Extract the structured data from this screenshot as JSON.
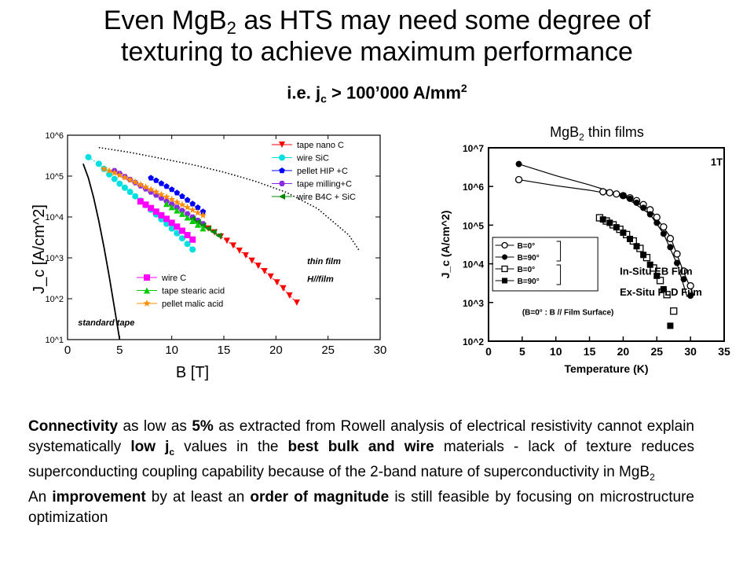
{
  "header": {
    "title_line1_pre": "Even MgB",
    "title_line1_sub": "2",
    "title_line1_post": " as HTS may need some degree of",
    "title_line2": "texturing to achieve maximum performance",
    "subtitle_pre": "i.e. j",
    "subtitle_sub": "c",
    "subtitle_post": " > 100’000 A/mm",
    "subtitle_sup": "2"
  },
  "right_caption": {
    "pre": "MgB",
    "sub": "2",
    "post": " thin films"
  },
  "text": {
    "p1": [
      {
        "t": "Connectivity",
        "b": true
      },
      {
        "t": " as low as "
      },
      {
        "t": "5%",
        "b": true
      },
      {
        "t": " as extracted from Rowell analysis of electrical resistivity cannot explain systematically "
      },
      {
        "t": "low j",
        "b": true
      },
      {
        "t": "c",
        "b": true,
        "sub": true
      },
      {
        "t": " values in the "
      },
      {
        "t": "best bulk and wire",
        "b": true
      },
      {
        "t": " materials - lack of texture reduces superconducting coupling capability because of the 2-band nature of superconductivity in MgB"
      },
      {
        "t": "2",
        "sub": true
      }
    ],
    "p2": [
      {
        "t": "An "
      },
      {
        "t": "improvement",
        "b": true
      },
      {
        "t": " by at least an "
      },
      {
        "t": "order of magnitude",
        "b": true
      },
      {
        "t": " is still feasible by focusing on microstructure optimization"
      }
    ]
  },
  "chart_data": [
    {
      "type": "scatter",
      "title": "",
      "xlabel": "B [T]",
      "ylabel": "J_c [A/cm^2]",
      "xlim": [
        0,
        30
      ],
      "ylim": [
        10,
        1000000
      ],
      "yscale": "log",
      "xticks": [
        "0",
        "5",
        "10",
        "15",
        "20",
        "25",
        "30"
      ],
      "yticks": [
        "10^1",
        "10^2",
        "10^3",
        "10^4",
        "10^5",
        "10^6"
      ],
      "annotations": [
        {
          "text": "thin film",
          "x": 23.0,
          "y": 700
        },
        {
          "text": "H//film",
          "x": 23.0,
          "y": 260
        },
        {
          "text": "standard tape",
          "x": 1.0,
          "y": 22
        }
      ],
      "legend_top": "top-right",
      "legend_bottom": "center",
      "series": [
        {
          "name": "tape nano C",
          "marker": "tri-down",
          "color": "#ff0000",
          "legend": "top",
          "x": [
            13.5,
            14.1,
            14.7,
            15.3,
            15.9,
            16.5,
            17.1,
            17.7,
            18.3,
            18.9,
            19.5,
            20.1,
            20.7,
            21.3,
            22.0
          ],
          "y": [
            5200,
            4200,
            3300,
            2600,
            2000,
            1500,
            1150,
            850,
            640,
            470,
            350,
            250,
            180,
            120,
            80
          ]
        },
        {
          "name": "wire SiC",
          "marker": "circle",
          "color": "#00e0e0",
          "legend": "top",
          "x": [
            2.0,
            3.0,
            3.5,
            4.0,
            4.5,
            5.0,
            5.5,
            6.0,
            6.5,
            7.0,
            7.5,
            8.0,
            8.5,
            9.0,
            9.5,
            10.0,
            10.5,
            11.0,
            11.5,
            12.0
          ],
          "y": [
            290000,
            200000,
            150000,
            110000,
            85000,
            65000,
            52000,
            41000,
            32000,
            25000,
            19500,
            15000,
            11500,
            8800,
            6800,
            5200,
            4000,
            3000,
            2200,
            1600
          ]
        },
        {
          "name": "pellet HIP +C",
          "marker": "pentagon",
          "color": "#0000ff",
          "legend": "top",
          "x": [
            8.0,
            8.5,
            9.0,
            9.5,
            10.0,
            10.5,
            11.0,
            11.5,
            12.0,
            12.5,
            13.0
          ],
          "y": [
            90000,
            78000,
            66000,
            56000,
            47000,
            39000,
            32000,
            26000,
            21000,
            17000,
            13500
          ]
        },
        {
          "name": "tape milling+C",
          "marker": "hexagon",
          "color": "#8a2be2",
          "legend": "top",
          "x": [
            4.5,
            5.0,
            5.5,
            6.0,
            6.5,
            7.0,
            7.5,
            8.0,
            8.5,
            9.0,
            9.5,
            10.0,
            10.5,
            11.0,
            11.5,
            12.0,
            12.5,
            13.0
          ],
          "y": [
            135000,
            115000,
            97000,
            82000,
            69000,
            58000,
            49000,
            41000,
            34500,
            29000,
            24300,
            20400,
            17100,
            14300,
            11900,
            9900,
            8200,
            6800
          ]
        },
        {
          "name": "wire B4C + SiC",
          "marker": "tri-left",
          "color": "#008800",
          "legend": "top",
          "x": [
            12.0,
            12.5,
            13.0,
            13.5,
            14.0,
            14.5
          ],
          "y": [
            9000,
            7500,
            6200,
            5200,
            4300,
            3500
          ]
        },
        {
          "name": "wire C",
          "marker": "square",
          "color": "#ff00ff",
          "legend": "bottom",
          "x": [
            7.0,
            7.5,
            8.0,
            8.5,
            9.0,
            9.5,
            10.0,
            10.5,
            11.0,
            11.5,
            12.0
          ],
          "y": [
            24000,
            20000,
            16500,
            13500,
            11000,
            9000,
            7200,
            5800,
            4600,
            3600,
            2800
          ]
        },
        {
          "name": "tape stearic acid",
          "marker": "tri-up",
          "color": "#00cc00",
          "legend": "bottom",
          "x": [
            9.5,
            10.0,
            10.5,
            11.0,
            11.5,
            12.0,
            12.5,
            13.0
          ],
          "y": [
            21000,
            17500,
            14500,
            12000,
            9800,
            8000,
            6500,
            5300
          ]
        },
        {
          "name": "pellet malic acid",
          "marker": "star",
          "color": "#ff8c00",
          "legend": "bottom",
          "x": [
            3.5,
            4.0,
            4.5,
            5.0,
            5.5,
            6.0,
            6.5,
            7.0,
            7.5,
            8.0,
            8.5,
            9.0,
            9.5,
            10.0,
            10.5,
            11.0,
            11.5,
            12.0,
            12.5,
            13.0
          ],
          "y": [
            150000,
            135000,
            120000,
            105000,
            92000,
            81000,
            71000,
            62000,
            54000,
            47000,
            41000,
            35500,
            31000,
            27000,
            23000,
            20000,
            17200,
            14800,
            12700,
            10900
          ]
        },
        {
          "name": "thin film",
          "marker": "dotted",
          "color": "#000000",
          "legend": "none",
          "x": [
            3.0,
            6,
            9,
            12,
            15,
            18,
            21,
            24,
            27,
            28
          ],
          "y": [
            500000,
            380000,
            270000,
            190000,
            125000,
            75000,
            40000,
            16000,
            3600,
            1500
          ]
        },
        {
          "name": "standard tape",
          "marker": "line",
          "color": "#000000",
          "legend": "none",
          "x": [
            1.5,
            2.0,
            2.5,
            3.0,
            3.5,
            4.0,
            4.5,
            5.0
          ],
          "y": [
            200000,
            90000,
            30000,
            8000,
            1800,
            350,
            60,
            10
          ]
        }
      ]
    },
    {
      "type": "scatter",
      "title": "",
      "xlabel": "Temperature (K)",
      "ylabel": "J_c (A/cm^2)",
      "xlim": [
        0,
        35
      ],
      "ylim": [
        100,
        10000000
      ],
      "yscale": "log",
      "xticks": [
        "0",
        "5",
        "10",
        "15",
        "20",
        "25",
        "30",
        "35"
      ],
      "yticks": [
        "10^2",
        "10^3",
        "10^4",
        "10^5",
        "10^6",
        "10^7"
      ],
      "annotations": [
        {
          "text": "1T",
          "x": 33.0,
          "y": 3500000
        },
        {
          "text": "In-Situ EB Film",
          "x": 19.5,
          "y": 5200
        },
        {
          "text": "Ex-Situ PLD Film",
          "x": 19.5,
          "y": 1500
        },
        {
          "text": "(B=0° : B // Film Surface)",
          "x": 5.0,
          "y": 480
        }
      ],
      "legend_placement": "bottom-left",
      "series": [
        {
          "name": "B=0°",
          "group": "In-Situ EB Film",
          "marker": "open-circle",
          "color": "#000000",
          "x": [
            4.5,
            17,
            18,
            19,
            20,
            21,
            22,
            23,
            24,
            25,
            26,
            27,
            28,
            29,
            30
          ],
          "y": [
            1500000,
            730000,
            690000,
            640000,
            580000,
            510000,
            430000,
            340000,
            250000,
            160000,
            90000,
            45000,
            18000,
            6500,
            2700
          ]
        },
        {
          "name": "B=90°",
          "group": "In-Situ EB Film",
          "marker": "filled-circle",
          "color": "#000000",
          "x": [
            4.5,
            20,
            21,
            22,
            23,
            24,
            25,
            26,
            27,
            28,
            29,
            30
          ],
          "y": [
            3800000,
            580000,
            480000,
            380000,
            280000,
            190000,
            115000,
            60000,
            27000,
            10500,
            4000,
            1500
          ]
        },
        {
          "name": "B=0°",
          "group": "Ex-Situ PLD Film",
          "marker": "open-square",
          "color": "#000000",
          "x": [
            16.5,
            17.5,
            18.5,
            19.5,
            20.5,
            21.5,
            22.5,
            23.5,
            24.5,
            25.5,
            26.5,
            27.5
          ],
          "y": [
            155000,
            128000,
            102000,
            78000,
            57000,
            39000,
            25000,
            14500,
            7800,
            3700,
            1600,
            600
          ]
        },
        {
          "name": "B=90°",
          "group": "Ex-Situ PLD Film",
          "marker": "filled-square",
          "color": "#000000",
          "x": [
            17,
            18,
            19,
            20,
            21,
            22,
            23,
            24,
            25,
            26,
            27
          ],
          "y": [
            140000,
            115000,
            88000,
            64000,
            44000,
            28500,
            17000,
            9500,
            4900,
            2200,
            250
          ]
        }
      ],
      "curves": [
        {
          "name": "B=0° fit",
          "x": [
            4.5,
            10,
            15,
            20,
            24,
            27,
            29,
            30.5
          ],
          "y": [
            1500000,
            1050000,
            800000,
            560000,
            260000,
            50000,
            6000,
            1500
          ]
        },
        {
          "name": "B=90° fit",
          "x": [
            4.5,
            10,
            15,
            20,
            24,
            26,
            28,
            29.5
          ],
          "y": [
            3800000,
            1900000,
            1100000,
            580000,
            190000,
            60000,
            10000,
            1400
          ]
        }
      ]
    }
  ]
}
